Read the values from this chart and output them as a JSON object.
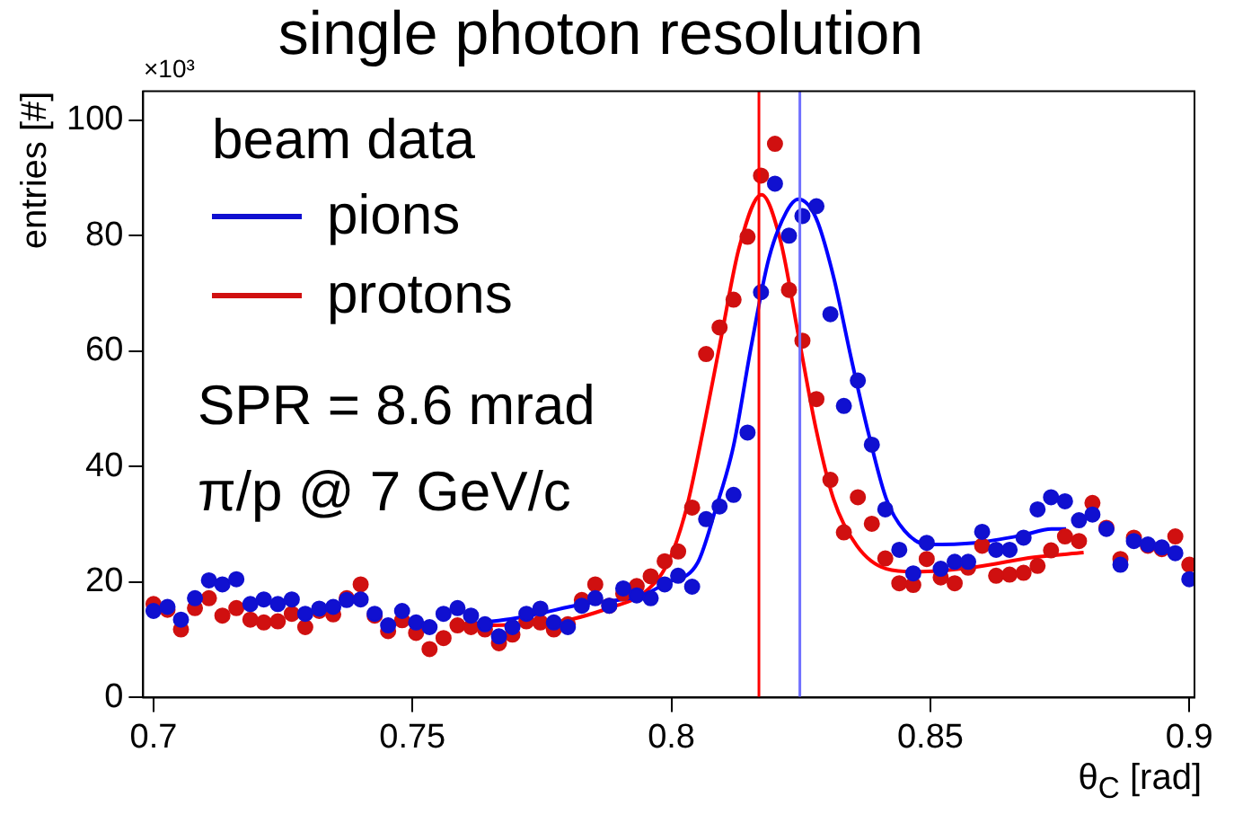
{
  "chart_data": {
    "type": "scatter",
    "title": "single photon resolution",
    "xlabel": "θ$_{C}$ [rad]",
    "ylabel": "entries [#]",
    "legend_title": "beam data",
    "annotations": [
      "×10³",
      "SPR = 8.6 mrad",
      "π/p @ 7 GeV/c"
    ],
    "x": [
      0.7,
      0.7027,
      0.7053,
      0.708,
      0.7107,
      0.7133,
      0.716,
      0.7187,
      0.7213,
      0.724,
      0.7267,
      0.7293,
      0.732,
      0.7347,
      0.7373,
      0.74,
      0.7427,
      0.7453,
      0.748,
      0.7507,
      0.7533,
      0.756,
      0.7587,
      0.7613,
      0.764,
      0.7667,
      0.7693,
      0.772,
      0.7747,
      0.7773,
      0.78,
      0.7827,
      0.7853,
      0.788,
      0.7907,
      0.7933,
      0.796,
      0.7987,
      0.8013,
      0.804,
      0.8067,
      0.8093,
      0.812,
      0.8147,
      0.8173,
      0.82,
      0.8227,
      0.8253,
      0.828,
      0.8307,
      0.8333,
      0.836,
      0.8387,
      0.8413,
      0.844,
      0.8467,
      0.8493,
      0.852,
      0.8547,
      0.8573,
      0.86,
      0.8627,
      0.8653,
      0.868,
      0.8707,
      0.8733,
      0.876,
      0.8787,
      0.8813,
      0.884,
      0.8867,
      0.8893,
      0.892,
      0.8947,
      0.8973,
      0.9
    ],
    "series": [
      {
        "name": "pions",
        "type": "scatter",
        "marker": "circle",
        "color": "#1010d0",
        "values": [
          15.0,
          15.7,
          13.5,
          17.2,
          20.3,
          19.6,
          20.5,
          16.2,
          17.0,
          16.2,
          17.0,
          14.5,
          15.4,
          15.7,
          16.9,
          17.0,
          14.5,
          12.5,
          15.0,
          13.0,
          12.2,
          14.5,
          15.5,
          14.2,
          12.7,
          10.6,
          12.2,
          14.5,
          15.4,
          13.0,
          12.2,
          15.9,
          17.2,
          15.9,
          18.9,
          17.7,
          17.2,
          19.6,
          21.1,
          19.2,
          30.9,
          33.1,
          35.1,
          45.9,
          70.2,
          89.0,
          80.0,
          83.4,
          85.1,
          66.4,
          50.5,
          54.9,
          43.8,
          32.6,
          25.6,
          21.5,
          26.8,
          22.3,
          23.5,
          23.5,
          28.7,
          25.6,
          25.6,
          27.7,
          32.6,
          34.7,
          34.0,
          30.7,
          31.7,
          29.2,
          23.0,
          27.1,
          26.5,
          26.0,
          25.0,
          20.5
        ]
      },
      {
        "name": "protons",
        "type": "scatter",
        "marker": "circle",
        "color": "#d01010",
        "values": [
          16.2,
          15.2,
          11.8,
          15.5,
          17.2,
          14.2,
          15.5,
          13.5,
          13.0,
          13.2,
          14.5,
          12.2,
          15.0,
          14.4,
          17.2,
          19.6,
          14.2,
          11.5,
          13.4,
          11.2,
          8.4,
          10.3,
          12.5,
          12.2,
          11.8,
          9.4,
          10.9,
          13.2,
          13.0,
          11.8,
          12.7,
          16.9,
          19.6,
          15.9,
          18.0,
          19.3,
          21.0,
          23.6,
          25.3,
          32.9,
          59.5,
          64.1,
          68.9,
          79.8,
          90.4,
          95.9,
          70.6,
          61.8,
          51.7,
          37.7,
          28.6,
          34.7,
          30.1,
          24.1,
          19.8,
          19.5,
          24.0,
          20.8,
          19.8,
          22.5,
          26.3,
          21.1,
          21.3,
          21.6,
          22.8,
          25.5,
          27.9,
          27.1,
          33.7,
          29.4,
          24.0,
          27.7,
          26.3,
          25.7,
          27.9,
          23.0
        ]
      },
      {
        "type": "line",
        "marker": "none",
        "line_style": "solid",
        "color": "#0000ff",
        "x": [
          0.758,
          0.7716,
          0.7829,
          0.7943,
          0.7989,
          0.8051,
          0.8085,
          0.812,
          0.8154,
          0.8188,
          0.8222,
          0.8245,
          0.8279,
          0.8313,
          0.8347,
          0.8381,
          0.8415,
          0.845,
          0.8495,
          0.8586,
          0.8677,
          0.8734,
          0.8762
        ],
        "values": [
          12.4,
          14.0,
          16.2,
          17.7,
          19.8,
          23.4,
          32.5,
          43.6,
          60.8,
          76.0,
          84.1,
          86.3,
          83.1,
          72.9,
          58.8,
          45.6,
          34.4,
          28.9,
          26.5,
          26.8,
          28.1,
          29.2,
          29.2
        ]
      },
      {
        "type": "line",
        "marker": "none",
        "line_style": "solid",
        "color": "#ff0000",
        "x": [
          0.758,
          0.7772,
          0.7886,
          0.7948,
          0.7993,
          0.8028,
          0.8062,
          0.8097,
          0.8131,
          0.8174,
          0.8211,
          0.8245,
          0.8279,
          0.8313,
          0.8358,
          0.8415,
          0.8472,
          0.8586,
          0.87,
          0.8796
        ],
        "values": [
          12.4,
          13.0,
          15.7,
          18.2,
          23.3,
          32.4,
          46.6,
          62.8,
          78.0,
          87.1,
          79.0,
          62.8,
          46.6,
          34.4,
          26.3,
          22.3,
          21.8,
          22.6,
          24.3,
          25.1
        ]
      }
    ],
    "ref_lines": [
      {
        "axis": "x",
        "value": 0.8169,
        "color": "#ff0000"
      },
      {
        "axis": "x",
        "value": 0.8248,
        "color": "#7070ff"
      }
    ],
    "xlim": [
      0.698,
      0.901
    ],
    "xticks": [
      0.7,
      0.75,
      0.8,
      0.85,
      0.9
    ],
    "ylim": [
      0,
      105
    ],
    "yticks": [
      0,
      20,
      40,
      60,
      80,
      100
    ],
    "grid": false,
    "legend": "top left"
  }
}
